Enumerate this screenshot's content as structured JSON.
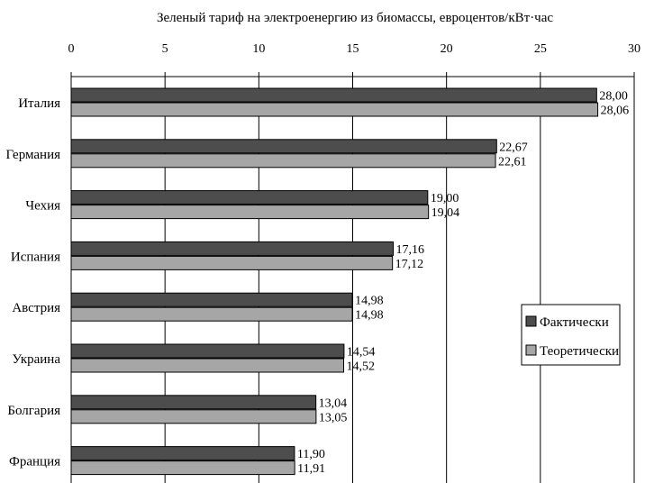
{
  "chart_data": {
    "type": "bar",
    "orientation": "horizontal",
    "title": "Зеленый тариф на электроенергию из биомассы, евроцентов/кВт·час",
    "categories": [
      "Италия",
      "Германия",
      "Чехия",
      "Испания",
      "Австрия",
      "Украина",
      "Болгария",
      "Франция"
    ],
    "series": [
      {
        "name": "Фактически",
        "color": "#4d4d4d",
        "values": [
          28.0,
          22.67,
          19.0,
          17.16,
          14.98,
          14.54,
          13.04,
          11.9
        ],
        "labels": [
          "28,00",
          "22,67",
          "19,00",
          "17,16",
          "14,98",
          "14,54",
          "13,04",
          "11,90"
        ]
      },
      {
        "name": "Теоретически",
        "color": "#a6a6a6",
        "values": [
          28.06,
          22.61,
          19.04,
          17.12,
          14.98,
          14.52,
          13.05,
          11.91
        ],
        "labels": [
          "28,06",
          "22,61",
          "19,04",
          "17,12",
          "14,98",
          "14,52",
          "13,05",
          "11,91"
        ]
      }
    ],
    "xlim": [
      0,
      30
    ],
    "xticks": [
      0,
      5,
      10,
      15,
      20,
      25,
      30
    ],
    "xaxis_position": "top",
    "grid": true,
    "legend_position": "right"
  }
}
